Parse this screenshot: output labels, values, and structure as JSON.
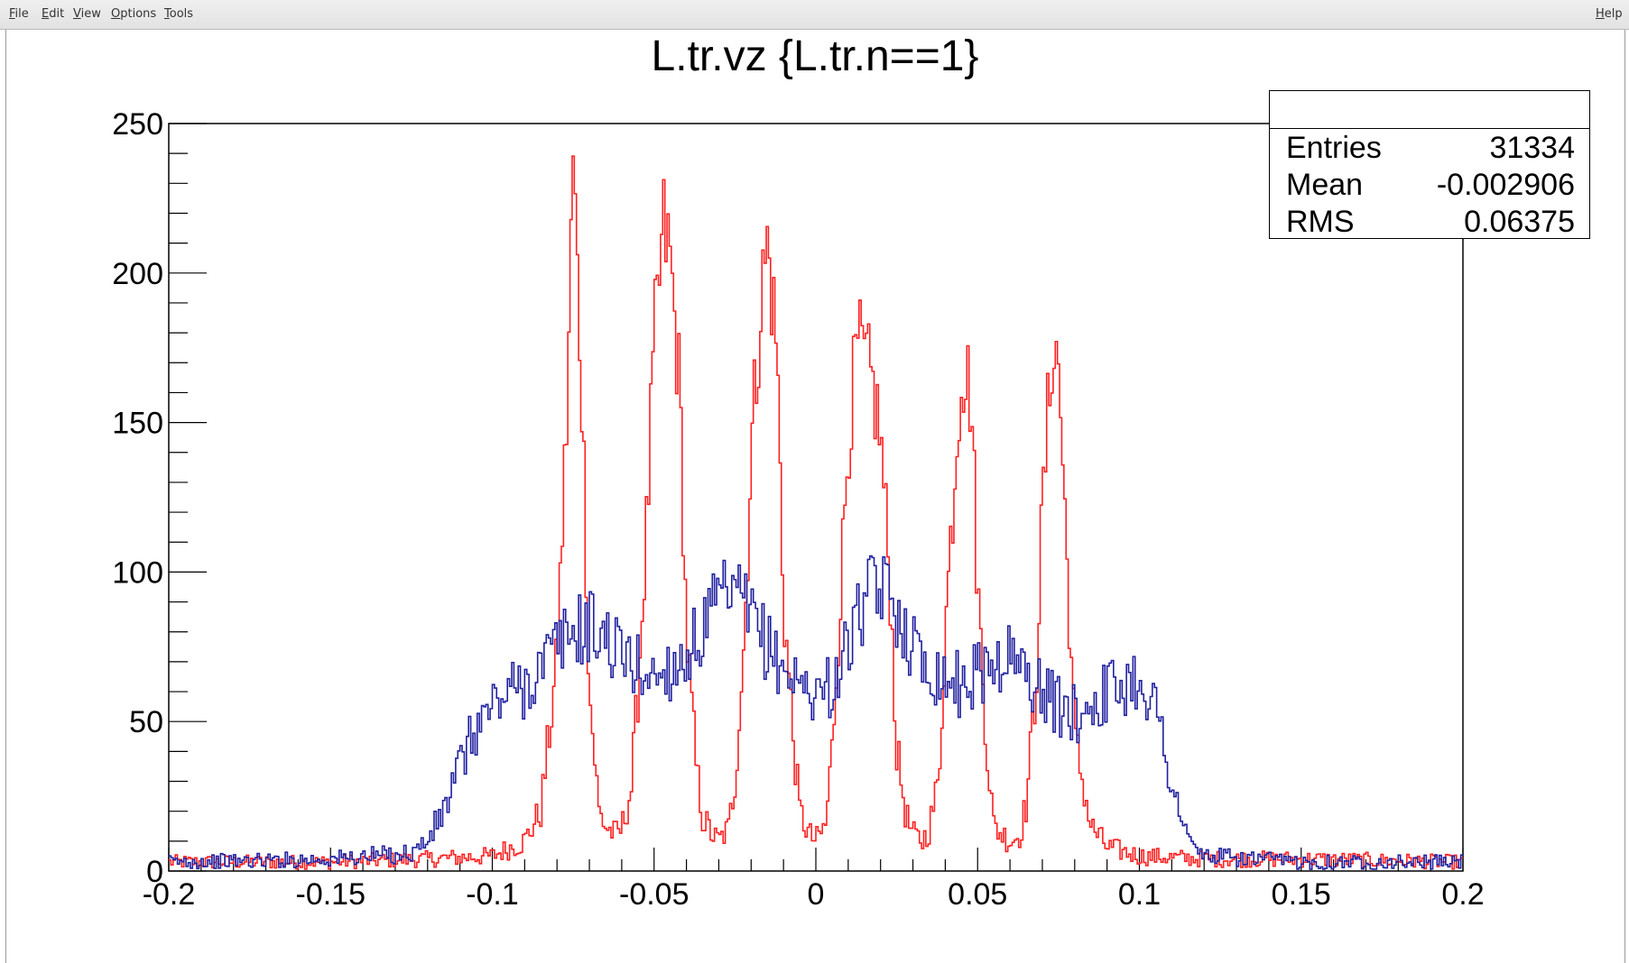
{
  "menu": {
    "file": "File",
    "edit": "Edit",
    "view": "View",
    "options": "Options",
    "tools": "Tools",
    "help": "Help"
  },
  "stats": {
    "title": "",
    "rows": [
      {
        "key": "Entries",
        "value": "31334"
      },
      {
        "key": "Mean",
        "value": "-0.002906"
      },
      {
        "key": "RMS",
        "value": "0.06375"
      }
    ]
  },
  "chart_data": {
    "type": "line",
    "title": "L.tr.vz {L.tr.n==1}",
    "xlabel": "",
    "ylabel": "",
    "xlim": [
      -0.2,
      0.2
    ],
    "ylim": [
      0,
      250
    ],
    "x_ticks": [
      "-0.2",
      "-0.15",
      "-0.1",
      "-0.05",
      "0",
      "0.05",
      "0.1",
      "0.15",
      "0.2"
    ],
    "y_ticks": [
      "0",
      "50",
      "100",
      "150",
      "200",
      "250"
    ],
    "grid": false,
    "draw_style": "step",
    "series": [
      {
        "color": "#ff2020",
        "x": [
          -0.2,
          -0.15,
          -0.12,
          -0.1,
          -0.09,
          -0.085,
          -0.08,
          -0.077,
          -0.075,
          -0.072,
          -0.07,
          -0.067,
          -0.065,
          -0.062,
          -0.06,
          -0.057,
          -0.055,
          -0.052,
          -0.05,
          -0.047,
          -0.045,
          -0.042,
          -0.04,
          -0.037,
          -0.035,
          -0.032,
          -0.03,
          -0.027,
          -0.025,
          -0.022,
          -0.02,
          -0.017,
          -0.015,
          -0.012,
          -0.01,
          -0.007,
          -0.005,
          -0.002,
          0,
          0.003,
          0.005,
          0.008,
          0.01,
          0.013,
          0.015,
          0.018,
          0.02,
          0.023,
          0.025,
          0.028,
          0.03,
          0.033,
          0.035,
          0.038,
          0.04,
          0.043,
          0.045,
          0.048,
          0.05,
          0.053,
          0.055,
          0.058,
          0.06,
          0.063,
          0.065,
          0.068,
          0.07,
          0.073,
          0.075,
          0.078,
          0.08,
          0.085,
          0.09,
          0.1,
          0.12,
          0.15,
          0.2
        ],
        "y": [
          3,
          3,
          4,
          5,
          10,
          20,
          70,
          150,
          238,
          150,
          60,
          20,
          15,
          12,
          14,
          28,
          60,
          120,
          175,
          215,
          205,
          160,
          80,
          35,
          18,
          12,
          10,
          14,
          30,
          80,
          140,
          190,
          210,
          175,
          90,
          45,
          20,
          12,
          10,
          15,
          40,
          100,
          145,
          175,
          170,
          160,
          145,
          95,
          40,
          18,
          12,
          10,
          14,
          30,
          80,
          135,
          170,
          160,
          95,
          40,
          15,
          12,
          10,
          12,
          22,
          60,
          120,
          175,
          170,
          95,
          45,
          15,
          8,
          5,
          4,
          4,
          3
        ]
      },
      {
        "color": "#2020a0",
        "x": [
          -0.2,
          -0.15,
          -0.125,
          -0.12,
          -0.115,
          -0.11,
          -0.105,
          -0.1,
          -0.095,
          -0.09,
          -0.085,
          -0.08,
          -0.075,
          -0.07,
          -0.065,
          -0.06,
          -0.055,
          -0.05,
          -0.045,
          -0.04,
          -0.035,
          -0.03,
          -0.025,
          -0.02,
          -0.015,
          -0.01,
          -0.005,
          0,
          0.005,
          0.01,
          0.015,
          0.02,
          0.025,
          0.03,
          0.035,
          0.04,
          0.045,
          0.05,
          0.055,
          0.06,
          0.065,
          0.07,
          0.075,
          0.08,
          0.085,
          0.09,
          0.095,
          0.1,
          0.105,
          0.11,
          0.115,
          0.12,
          0.15,
          0.2
        ],
        "y": [
          3,
          4,
          6,
          10,
          20,
          35,
          48,
          55,
          60,
          62,
          68,
          75,
          80,
          82,
          78,
          72,
          68,
          65,
          68,
          72,
          80,
          90,
          92,
          85,
          75,
          68,
          62,
          60,
          62,
          75,
          90,
          95,
          88,
          75,
          68,
          65,
          62,
          66,
          70,
          72,
          66,
          60,
          55,
          52,
          56,
          60,
          62,
          65,
          55,
          30,
          10,
          5,
          3,
          3
        ]
      }
    ]
  }
}
